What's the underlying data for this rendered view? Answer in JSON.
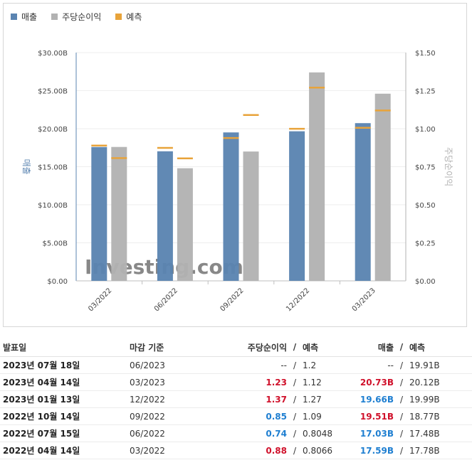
{
  "legend": [
    {
      "label": "매출",
      "color": "#5b84b1"
    },
    {
      "label": "주당순이익",
      "color": "#b2b2b2"
    },
    {
      "label": "예측",
      "color": "#e8a33a"
    }
  ],
  "chart_data": {
    "type": "bar",
    "categories": [
      "03/2022",
      "06/2022",
      "09/2022",
      "12/2022",
      "03/2023"
    ],
    "series": [
      {
        "name": "매출",
        "axis": "left",
        "values": [
          17.59,
          17.03,
          19.51,
          19.66,
          20.73
        ],
        "forecast": [
          17.78,
          17.48,
          18.77,
          19.99,
          20.12
        ]
      },
      {
        "name": "주당순이익",
        "axis": "right",
        "values": [
          0.88,
          0.74,
          0.85,
          1.37,
          1.23
        ],
        "forecast": [
          0.8066,
          0.8048,
          1.09,
          1.27,
          1.12
        ]
      }
    ],
    "left_axis": {
      "label": "매출",
      "ylim": [
        0,
        30
      ],
      "ticks": [
        "$0.00",
        "$5.00B",
        "$10.00B",
        "$15.00B",
        "$20.00B",
        "$25.00B",
        "$30.00B"
      ]
    },
    "right_axis": {
      "label": "주당순이익",
      "ylim": [
        0,
        1.5
      ],
      "ticks": [
        "$0.00",
        "$0.25",
        "$0.50",
        "$0.75",
        "$1.00",
        "$1.25",
        "$1.50"
      ]
    },
    "watermark": "Investing.com"
  },
  "table": {
    "headers": {
      "date": "발표일",
      "period": "마감 기준",
      "eps": "주당순이익",
      "slash": "/",
      "eps_forecast": "예측",
      "revenue": "매출",
      "revenue_forecast": "예측"
    },
    "rows": [
      {
        "date": "2023년 07월 18일",
        "period": "06/2023",
        "eps": "--",
        "eps_color": "none",
        "eps_forecast": "1.2",
        "revenue": "--",
        "revenue_color": "none",
        "revenue_forecast": "19.91B"
      },
      {
        "date": "2023년 04월 14일",
        "period": "03/2023",
        "eps": "1.23",
        "eps_color": "red",
        "eps_forecast": "1.12",
        "revenue": "20.73B",
        "revenue_color": "red",
        "revenue_forecast": "20.12B"
      },
      {
        "date": "2023년 01월 13일",
        "period": "12/2022",
        "eps": "1.37",
        "eps_color": "red",
        "eps_forecast": "1.27",
        "revenue": "19.66B",
        "revenue_color": "blue",
        "revenue_forecast": "19.99B"
      },
      {
        "date": "2022년 10월 14일",
        "period": "09/2022",
        "eps": "0.85",
        "eps_color": "blue",
        "eps_forecast": "1.09",
        "revenue": "19.51B",
        "revenue_color": "red",
        "revenue_forecast": "18.77B"
      },
      {
        "date": "2022년 07월 15일",
        "period": "06/2022",
        "eps": "0.74",
        "eps_color": "blue",
        "eps_forecast": "0.8048",
        "revenue": "17.03B",
        "revenue_color": "blue",
        "revenue_forecast": "17.48B"
      },
      {
        "date": "2022년 04월 14일",
        "period": "03/2022",
        "eps": "0.88",
        "eps_color": "red",
        "eps_forecast": "0.8066",
        "revenue": "17.59B",
        "revenue_color": "blue",
        "revenue_forecast": "17.78B"
      }
    ]
  }
}
